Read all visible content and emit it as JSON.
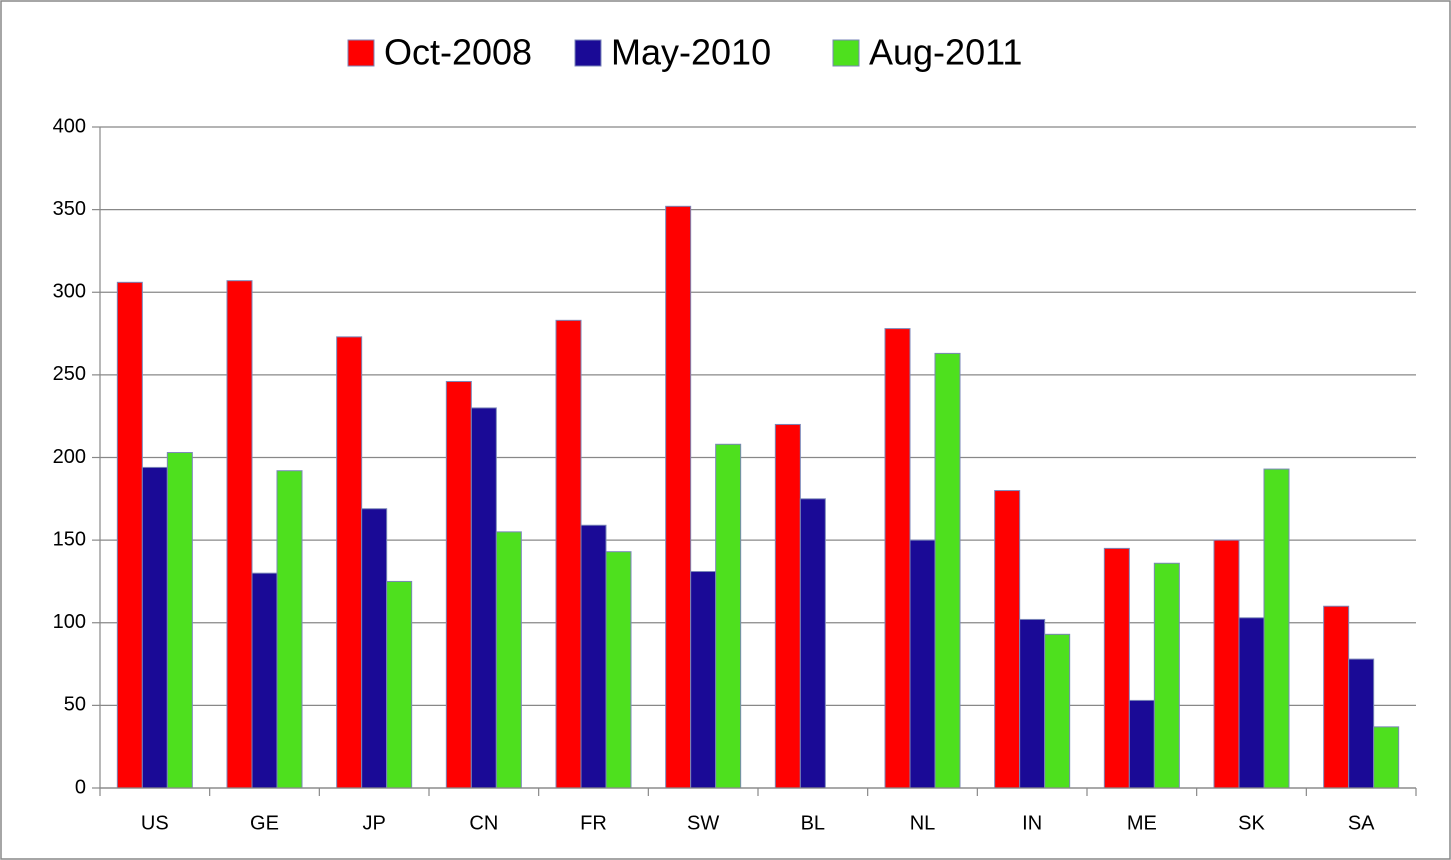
{
  "chart_data": {
    "type": "bar",
    "categories": [
      "US",
      "GE",
      "JP",
      "CN",
      "FR",
      "SW",
      "BL",
      "NL",
      "IN",
      "ME",
      "SK",
      "SA"
    ],
    "series": [
      {
        "name": "Oct-2008",
        "color": "#ff0000",
        "values": [
          306,
          307,
          273,
          246,
          283,
          352,
          220,
          278,
          180,
          145,
          150,
          110
        ]
      },
      {
        "name": "May-2010",
        "color": "#1a0a96",
        "values": [
          194,
          130,
          169,
          230,
          159,
          131,
          175,
          150,
          102,
          53,
          103,
          78
        ]
      },
      {
        "name": "Aug-2011",
        "color": "#4ee01e",
        "values": [
          203,
          192,
          125,
          155,
          143,
          208,
          null,
          263,
          93,
          136,
          193,
          37
        ]
      }
    ],
    "ylim": [
      0,
      400
    ],
    "yticks": [
      0,
      50,
      100,
      150,
      200,
      250,
      300,
      350,
      400
    ],
    "grid": true,
    "legend": "top"
  }
}
